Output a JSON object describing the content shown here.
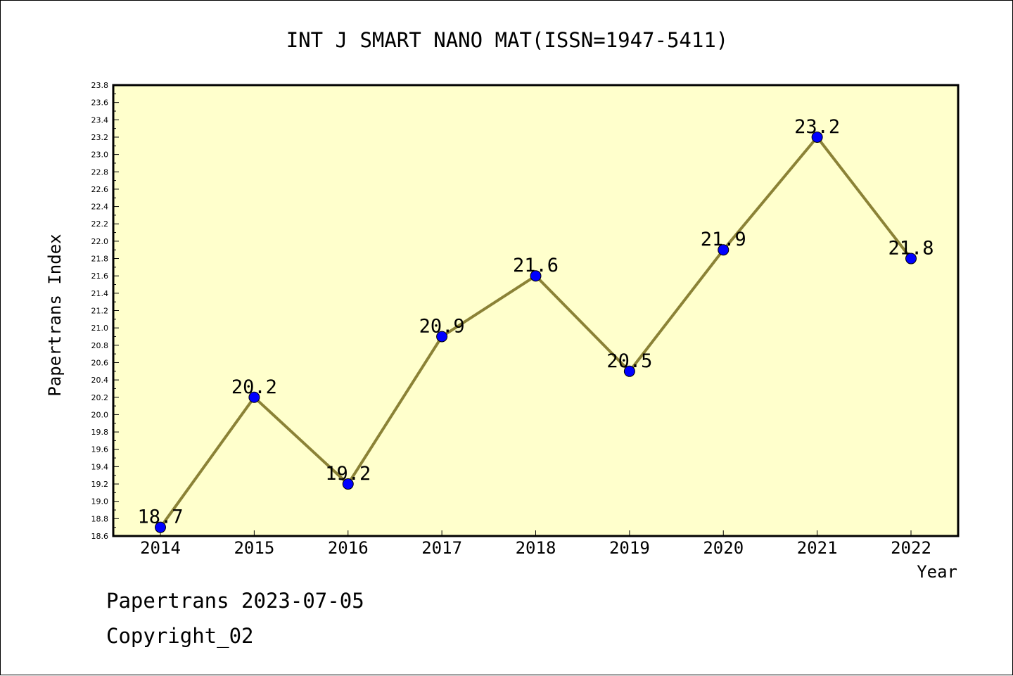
{
  "colors": {
    "plot_background": "#ffffcc",
    "line": "#8b8236",
    "marker": "#0000ff",
    "axis": "#000000"
  },
  "chart_data": {
    "type": "line",
    "title": "INT J SMART NANO MAT(ISSN=1947-5411)",
    "xlabel": "Year",
    "ylabel": "Papertrans Index",
    "x": [
      "2014",
      "2015",
      "2016",
      "2017",
      "2018",
      "2019",
      "2020",
      "2021",
      "2022"
    ],
    "series": [
      {
        "values": [
          18.7,
          20.2,
          19.2,
          20.9,
          21.6,
          20.5,
          21.9,
          23.2,
          21.8
        ]
      }
    ],
    "data_labels": [
      "18.7",
      "20.2",
      "19.2",
      "20.9",
      "21.6",
      "20.5",
      "21.9",
      "23.2",
      "21.8"
    ],
    "ylim": [
      18.6,
      23.8
    ],
    "y_ticks": [
      "18.6",
      "18.8",
      "19.0",
      "19.2",
      "19.4",
      "19.6",
      "19.8",
      "20.0",
      "20.2",
      "20.4",
      "20.6",
      "20.8",
      "21.0",
      "21.2",
      "21.4",
      "21.6",
      "21.8",
      "22.0",
      "22.2",
      "22.4",
      "22.6",
      "22.8",
      "23.0",
      "23.2",
      "23.4",
      "23.6",
      "23.8"
    ],
    "grid": false,
    "legend": "none",
    "marker": "circle"
  },
  "footer": {
    "line1": "Papertrans 2023-07-05",
    "line2": "Copyright_02"
  }
}
